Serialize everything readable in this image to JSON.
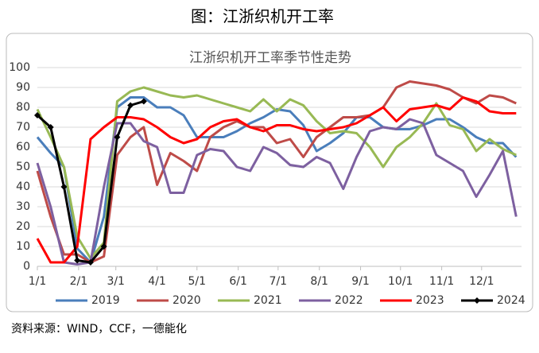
{
  "title": "图：江浙织机开工率",
  "source": "资料来源：WIND，CCF，一德能化",
  "chart_data": {
    "type": "line",
    "title": "江浙织机开工率季节性走势",
    "x": [
      1,
      11,
      21,
      31,
      41,
      51,
      61,
      71,
      81,
      91,
      101,
      111,
      121,
      131,
      141,
      151,
      161,
      171,
      181,
      191,
      201,
      211,
      221,
      231,
      241,
      251,
      261,
      271,
      281,
      291,
      301,
      311,
      321,
      331,
      341,
      351,
      361
    ],
    "xlim": [
      1,
      365
    ],
    "xticks": [
      {
        "value": 1,
        "label": "1/1"
      },
      {
        "value": 32,
        "label": "2/1"
      },
      {
        "value": 60,
        "label": "3/1"
      },
      {
        "value": 91,
        "label": "4/1"
      },
      {
        "value": 121,
        "label": "5/1"
      },
      {
        "value": 152,
        "label": "6/1"
      },
      {
        "value": 182,
        "label": "7/1"
      },
      {
        "value": 213,
        "label": "8/1"
      },
      {
        "value": 244,
        "label": "9/1"
      },
      {
        "value": 274,
        "label": "10/1"
      },
      {
        "value": 305,
        "label": "11/1"
      },
      {
        "value": 335,
        "label": "12/1"
      }
    ],
    "ylim": [
      0,
      100
    ],
    "yticks": [
      0,
      10,
      20,
      30,
      40,
      50,
      60,
      70,
      80,
      90,
      100
    ],
    "grid": true,
    "series": [
      {
        "name": "2019",
        "color": "#4a7ebb",
        "values": [
          65,
          57,
          50,
          9,
          2,
          25,
          80,
          85,
          85,
          80,
          80,
          76,
          65,
          65,
          65,
          68,
          72,
          75,
          79,
          78,
          71,
          58,
          62,
          67,
          75,
          75,
          70,
          69,
          69,
          71,
          74,
          74,
          70,
          65,
          62,
          62,
          55
        ]
      },
      {
        "name": "2020",
        "color": "#be4b48",
        "values": [
          48,
          25,
          6,
          6,
          2,
          5,
          56,
          65,
          70,
          41,
          57,
          53,
          48,
          65,
          70,
          73,
          70,
          70,
          62,
          64,
          55,
          65,
          70,
          75,
          75,
          76,
          80,
          90,
          93,
          92,
          91,
          89,
          85,
          82,
          86,
          85,
          82
        ]
      },
      {
        "name": "2021",
        "color": "#98b954",
        "values": [
          79,
          65,
          50,
          15,
          4,
          12,
          83,
          88,
          90,
          88,
          86,
          85,
          86,
          84,
          82,
          80,
          78,
          84,
          78,
          84,
          81,
          73,
          67,
          68,
          67,
          60,
          50,
          60,
          65,
          72,
          82,
          71,
          69,
          58,
          64,
          59,
          56
        ]
      },
      {
        "name": "2022",
        "color": "#7d60a0",
        "values": [
          52,
          30,
          2,
          1,
          2,
          40,
          72,
          72,
          63,
          60,
          37,
          37,
          56,
          59,
          58,
          50,
          48,
          60,
          57,
          51,
          50,
          55,
          52,
          39,
          55,
          68,
          70,
          69,
          74,
          72,
          56,
          52,
          48,
          35,
          46,
          58,
          25
        ]
      },
      {
        "name": "2023",
        "color": "#ff0000",
        "values": [
          14,
          2,
          2,
          10,
          64,
          70,
          75,
          75,
          74,
          70,
          65,
          62,
          64,
          70,
          73,
          74,
          70,
          68,
          71,
          71,
          69,
          68,
          69,
          70,
          72,
          76,
          80,
          73,
          79,
          80,
          81,
          79,
          85,
          83,
          78,
          77,
          77
        ]
      },
      {
        "name": "2024",
        "color": "#000000",
        "marker": "diamond",
        "values": [
          76,
          70,
          40,
          3,
          2,
          10,
          65,
          81,
          83,
          null,
          null,
          null,
          null,
          null,
          null,
          null,
          null,
          null,
          null,
          null,
          null,
          null,
          null,
          null,
          null,
          null,
          null,
          null,
          null,
          null,
          null,
          null,
          null,
          null,
          null,
          null,
          null
        ]
      }
    ]
  }
}
